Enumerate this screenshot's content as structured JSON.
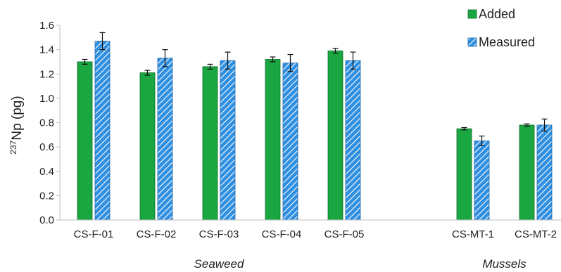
{
  "chart_data": {
    "type": "bar",
    "ylabel_sup": "237",
    "ylabel_main": "Np (pg)",
    "ylim": [
      0,
      1.6
    ],
    "yticks": [
      "0.0",
      "0.2",
      "0.4",
      "0.6",
      "0.8",
      "1.0",
      "1.2",
      "1.4",
      "1.6"
    ],
    "grid": false,
    "legend_position": "top-right",
    "categories": [
      "CS-F-01",
      "CS-F-02",
      "CS-F-03",
      "CS-F-04",
      "CS-F-05",
      "CS-MT-1",
      "CS-MT-2"
    ],
    "groups": [
      {
        "label": "Seaweed",
        "categories": [
          "CS-F-01",
          "CS-F-02",
          "CS-F-03",
          "CS-F-04",
          "CS-F-05"
        ]
      },
      {
        "label": "Mussels",
        "categories": [
          "CS-MT-1",
          "CS-MT-2"
        ]
      }
    ],
    "series": [
      {
        "name": "Added",
        "color": "#1aa640",
        "pattern": "solid",
        "values": [
          1.3,
          1.21,
          1.26,
          1.32,
          1.39,
          0.75,
          0.78
        ],
        "errors": [
          0.02,
          0.02,
          0.02,
          0.02,
          0.02,
          0.01,
          0.01
        ]
      },
      {
        "name": "Measured",
        "color": "#2f8fe0",
        "pattern": "hatched",
        "values": [
          1.47,
          1.33,
          1.31,
          1.29,
          1.31,
          0.65,
          0.78
        ],
        "errors": [
          0.07,
          0.07,
          0.07,
          0.07,
          0.07,
          0.04,
          0.05
        ]
      }
    ]
  }
}
